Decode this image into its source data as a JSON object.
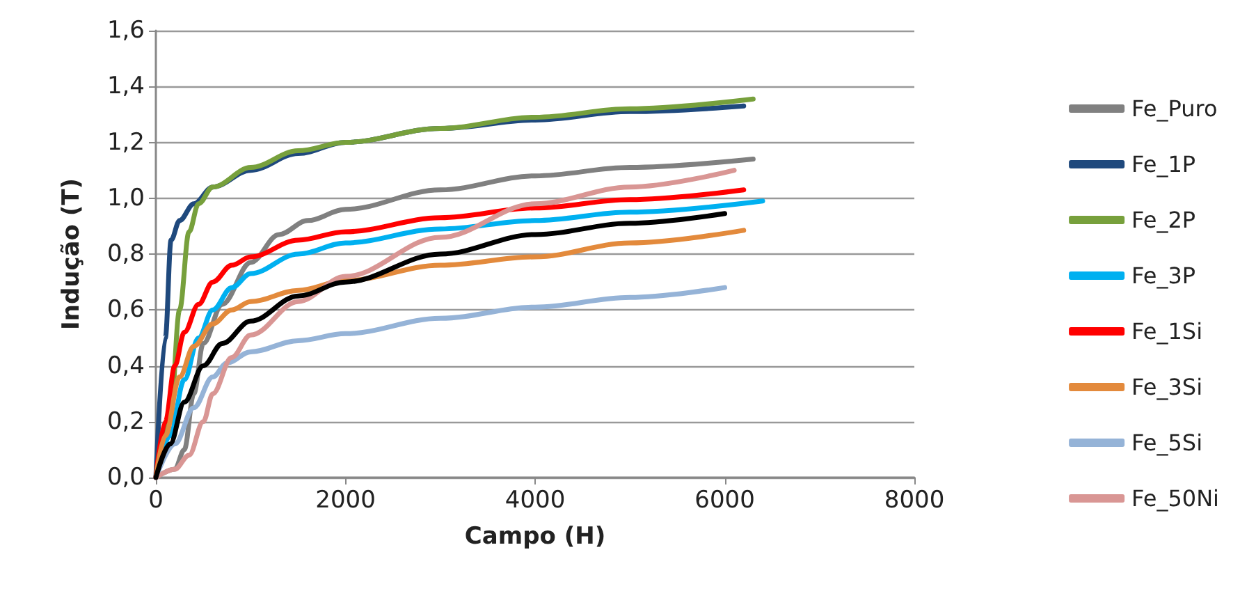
{
  "chart_data": {
    "type": "line",
    "xlabel": "Campo (H)",
    "ylabel": "Indução (T)",
    "xlim": [
      0,
      8000
    ],
    "xticks": [
      0,
      2000,
      4000,
      6000,
      8000
    ],
    "ylim": [
      0,
      1.6
    ],
    "yticks": [
      {
        "value": 0,
        "label": "0,0"
      },
      {
        "value": 0.2,
        "label": "0,2"
      },
      {
        "value": 0.4,
        "label": "0,4"
      },
      {
        "value": 0.6,
        "label": "0,6"
      },
      {
        "value": 0.8,
        "label": "0,8"
      },
      {
        "value": 1,
        "label": "1,0"
      },
      {
        "value": 1.2,
        "label": "1,2"
      },
      {
        "value": 1.4,
        "label": "1,4"
      },
      {
        "value": 1.6,
        "label": "1,6"
      }
    ],
    "grid": "y",
    "legend": "right",
    "marker": "none",
    "line_style": "solid",
    "series": [
      {
        "name": "Fe_Puro",
        "color": "#808080",
        "x": [
          0,
          200,
          300,
          400,
          500,
          700,
          1000,
          1300,
          1600,
          2000,
          3000,
          4000,
          5000,
          6300
        ],
        "values": [
          0,
          0.03,
          0.1,
          0.3,
          0.48,
          0.62,
          0.77,
          0.87,
          0.92,
          0.96,
          1.03,
          1.08,
          1.11,
          1.14
        ]
      },
      {
        "name": "Fe_1P",
        "color": "#1f497d",
        "x": [
          0,
          100,
          160,
          250,
          400,
          600,
          1000,
          1500,
          2000,
          3000,
          4000,
          5000,
          6200
        ],
        "values": [
          0,
          0.5,
          0.85,
          0.92,
          0.98,
          1.04,
          1.1,
          1.16,
          1.2,
          1.25,
          1.28,
          1.31,
          1.33
        ]
      },
      {
        "name": "Fe_2P",
        "color": "#77a03c",
        "x": [
          0,
          150,
          250,
          350,
          450,
          600,
          1000,
          1500,
          2000,
          3000,
          4000,
          5000,
          6300
        ],
        "values": [
          0,
          0.2,
          0.6,
          0.88,
          0.98,
          1.04,
          1.11,
          1.17,
          1.2,
          1.25,
          1.29,
          1.32,
          1.355
        ]
      },
      {
        "name": "Fe_3P",
        "color": "#00b0f0",
        "x": [
          0,
          150,
          300,
          450,
          600,
          800,
          1000,
          1500,
          2000,
          3000,
          4000,
          5000,
          6400
        ],
        "values": [
          0,
          0.15,
          0.35,
          0.5,
          0.6,
          0.68,
          0.73,
          0.8,
          0.84,
          0.89,
          0.92,
          0.95,
          0.99
        ]
      },
      {
        "name": "Fe_1Si",
        "color": "#ff0000",
        "x": [
          0,
          100,
          200,
          300,
          450,
          600,
          800,
          1000,
          1500,
          2000,
          3000,
          4000,
          5000,
          6200
        ],
        "values": [
          0,
          0.2,
          0.4,
          0.52,
          0.62,
          0.7,
          0.76,
          0.79,
          0.85,
          0.88,
          0.93,
          0.965,
          0.995,
          1.03
        ]
      },
      {
        "name": "Fe_3Si",
        "color": "#e38a3c",
        "x": [
          0,
          100,
          250,
          400,
          600,
          800,
          1000,
          1500,
          2000,
          3000,
          4000,
          5000,
          6200
        ],
        "values": [
          0,
          0.15,
          0.36,
          0.47,
          0.55,
          0.6,
          0.63,
          0.67,
          0.705,
          0.76,
          0.79,
          0.84,
          0.885
        ]
      },
      {
        "name": "Fe_5Si",
        "color": "#95b3d7",
        "x": [
          0,
          200,
          400,
          600,
          750,
          1000,
          1500,
          2000,
          3000,
          4000,
          5000,
          6000
        ],
        "values": [
          0,
          0.12,
          0.25,
          0.36,
          0.41,
          0.45,
          0.49,
          0.515,
          0.57,
          0.61,
          0.645,
          0.68
        ]
      },
      {
        "name": "Fe_50Ni",
        "color": "#d99694",
        "x": [
          0,
          200,
          350,
          500,
          600,
          800,
          1000,
          1500,
          2000,
          3000,
          4000,
          5000,
          6100
        ],
        "values": [
          0,
          0.03,
          0.08,
          0.2,
          0.3,
          0.43,
          0.51,
          0.63,
          0.72,
          0.86,
          0.98,
          1.04,
          1.1
        ]
      },
      {
        "color": "#000000",
        "x": [
          0,
          150,
          300,
          500,
          700,
          1000,
          1500,
          2000,
          3000,
          4000,
          5000,
          6000
        ],
        "values": [
          0,
          0.12,
          0.27,
          0.4,
          0.48,
          0.56,
          0.65,
          0.7,
          0.8,
          0.87,
          0.91,
          0.945
        ]
      }
    ]
  }
}
